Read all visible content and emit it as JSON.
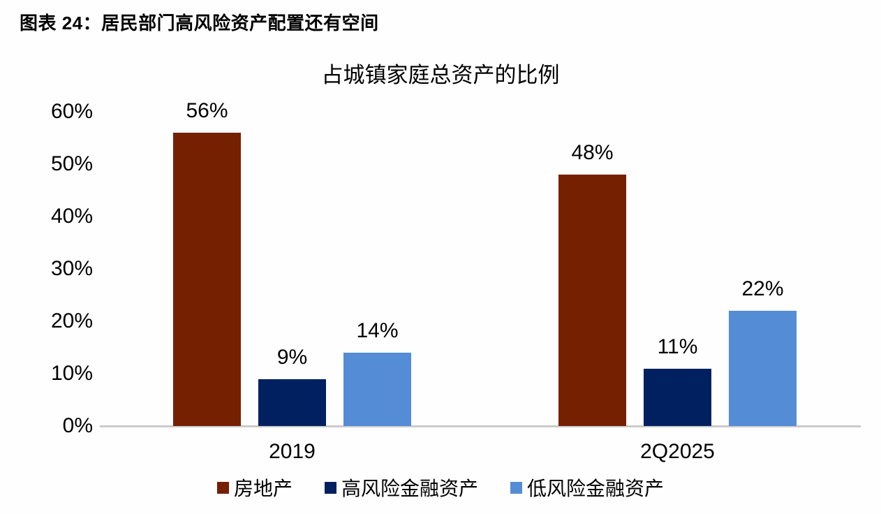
{
  "figure": {
    "caption": "图表 24：居民部门高风险资产配置还有空间"
  },
  "chart_data": {
    "type": "bar",
    "title": "占城镇家庭总资产的比例",
    "categories": [
      "2019",
      "2Q2025"
    ],
    "series": [
      {
        "name": "房地产",
        "color": "#752001",
        "values": [
          56,
          48
        ],
        "data_labels": [
          "56%",
          "48%"
        ]
      },
      {
        "name": "高风险金融资产",
        "color": "#002060",
        "values": [
          9,
          11
        ],
        "data_labels": [
          "9%",
          "11%"
        ]
      },
      {
        "name": "低风险金融资产",
        "color": "#548CD6",
        "values": [
          14,
          22
        ],
        "data_labels": [
          "14%",
          "22%"
        ]
      }
    ],
    "xlabel": "",
    "ylabel": "",
    "ylim": [
      0,
      60
    ],
    "yticks": [
      {
        "value": 60,
        "label": "60%"
      },
      {
        "value": 50,
        "label": "50%"
      },
      {
        "value": 40,
        "label": "40%"
      },
      {
        "value": 30,
        "label": "30%"
      },
      {
        "value": 20,
        "label": "20%"
      },
      {
        "value": 10,
        "label": "10%"
      },
      {
        "value": 0,
        "label": "0%"
      }
    ],
    "grid": false,
    "legend_position": "bottom",
    "baseline_color": "#CBCBCB",
    "text_color": "#000000",
    "background": "#FEFEFE"
  }
}
